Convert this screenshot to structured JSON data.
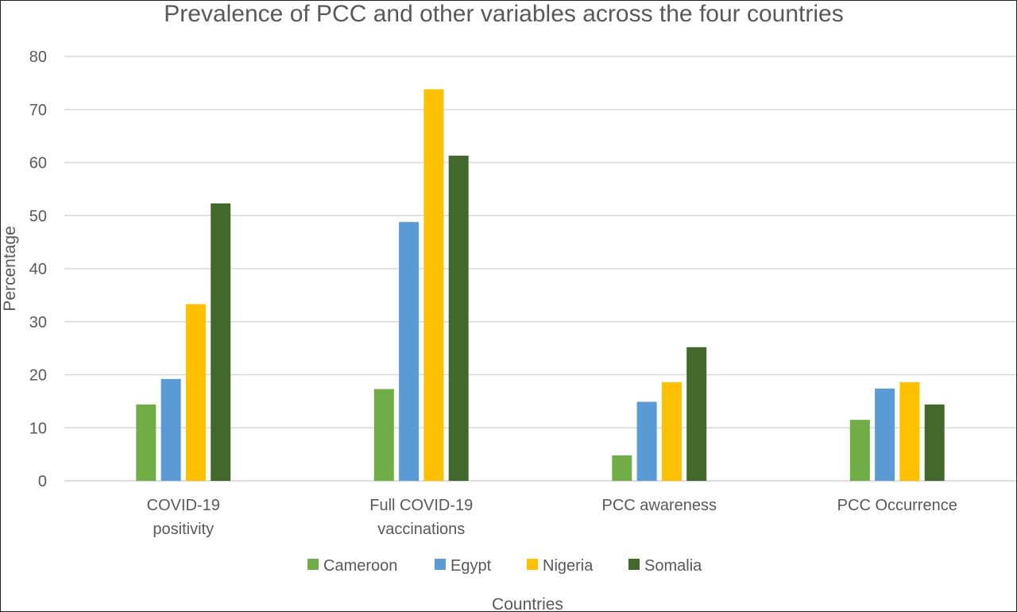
{
  "chart_data": {
    "type": "bar",
    "title": "Prevalence of PCC and other variables across the four countries",
    "xlabel": "Countries",
    "ylabel": "Percentage",
    "ylim": [
      0,
      80
    ],
    "yticks": [
      0,
      10,
      20,
      30,
      40,
      50,
      60,
      70,
      80
    ],
    "grid": true,
    "legend_position": "bottom",
    "categories": [
      [
        "COVID-19",
        "positivity"
      ],
      [
        "Full COVID-19",
        "vaccinations"
      ],
      [
        "PCC awareness"
      ],
      [
        "PCC Occurrence"
      ]
    ],
    "series": [
      {
        "name": "Cameroon",
        "color": "#70ad47",
        "values": [
          14.4,
          17.3,
          4.8,
          11.5
        ]
      },
      {
        "name": "Egypt",
        "color": "#5b9bd5",
        "values": [
          19.2,
          48.8,
          14.9,
          17.4
        ]
      },
      {
        "name": "Nigeria",
        "color": "#ffc000",
        "values": [
          33.3,
          73.8,
          18.6,
          18.6
        ]
      },
      {
        "name": "Somalia",
        "color": "#43682b",
        "values": [
          52.3,
          61.3,
          25.2,
          14.4
        ]
      }
    ]
  }
}
